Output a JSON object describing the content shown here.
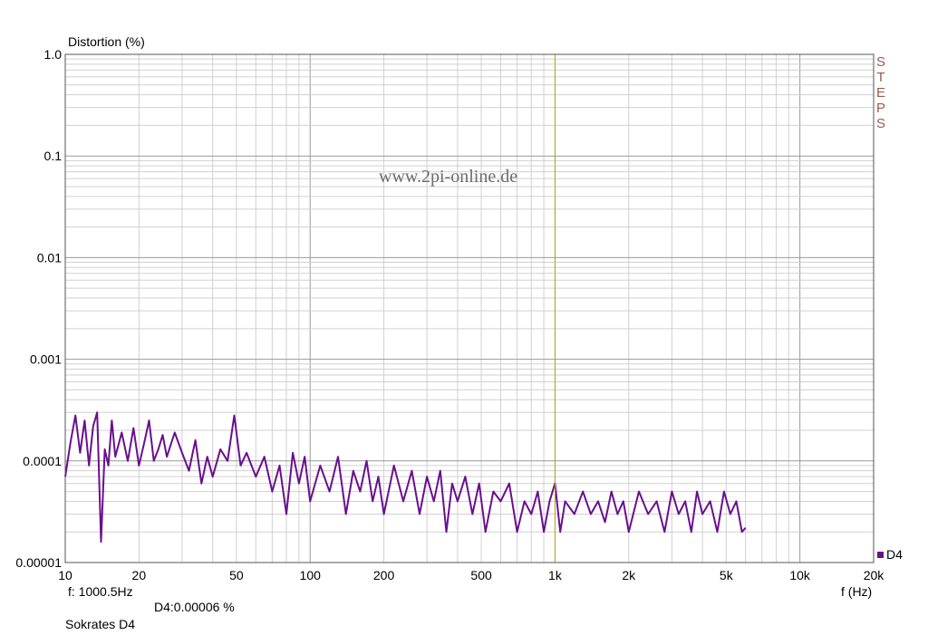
{
  "chart_data": {
    "type": "line",
    "ylabel": "Distortion (%)",
    "xlabel": "f (Hz)",
    "x_scale": "log",
    "y_scale": "log",
    "xlim": [
      10,
      20000
    ],
    "ylim": [
      1e-05,
      1.0
    ],
    "grid": true,
    "legend_position": "bottom-right",
    "x_ticks": [
      {
        "v": 10,
        "label": "10"
      },
      {
        "v": 20,
        "label": "20"
      },
      {
        "v": 50,
        "label": "50"
      },
      {
        "v": 100,
        "label": "100"
      },
      {
        "v": 200,
        "label": "200"
      },
      {
        "v": 500,
        "label": "500"
      },
      {
        "v": 1000,
        "label": "1k"
      },
      {
        "v": 2000,
        "label": "2k"
      },
      {
        "v": 5000,
        "label": "5k"
      },
      {
        "v": 10000,
        "label": "10k"
      },
      {
        "v": 20000,
        "label": "20k"
      }
    ],
    "y_ticks": [
      {
        "v": 1.0,
        "label": "1.0"
      },
      {
        "v": 0.1,
        "label": "0.1"
      },
      {
        "v": 0.01,
        "label": "0.01"
      },
      {
        "v": 0.001,
        "label": "0.001"
      },
      {
        "v": 0.0001,
        "label": "0.0001"
      },
      {
        "v": 1e-05,
        "label": "0.00001"
      }
    ],
    "cursor": {
      "frequency": 1000.5,
      "color": "#b8a800"
    },
    "series": [
      {
        "name": "D4",
        "color": "#6a0f8e",
        "x": [
          10,
          10.5,
          11,
          11.5,
          12,
          12.5,
          13,
          13.5,
          14,
          14.5,
          15,
          15.5,
          16,
          17,
          18,
          19,
          20,
          21,
          22,
          23,
          24,
          25,
          26,
          28,
          30,
          32,
          34,
          36,
          38,
          40,
          43,
          46,
          49,
          52,
          55,
          60,
          65,
          70,
          75,
          80,
          85,
          90,
          95,
          100,
          110,
          120,
          130,
          140,
          150,
          160,
          170,
          180,
          190,
          200,
          220,
          240,
          260,
          280,
          300,
          320,
          340,
          360,
          380,
          400,
          430,
          460,
          490,
          520,
          560,
          600,
          650,
          700,
          750,
          800,
          850,
          900,
          950,
          1000,
          1050,
          1100,
          1200,
          1300,
          1400,
          1500,
          1600,
          1700,
          1800,
          1900,
          2000,
          2200,
          2400,
          2600,
          2800,
          3000,
          3200,
          3400,
          3600,
          3800,
          4000,
          4300,
          4600,
          4900,
          5200,
          5500,
          5800,
          6000
        ],
        "y": [
          7e-05,
          0.00015,
          0.00028,
          0.00012,
          0.00025,
          9e-05,
          0.00022,
          0.0003,
          1.6e-05,
          0.00013,
          9e-05,
          0.00025,
          0.00011,
          0.00019,
          0.0001,
          0.00021,
          9e-05,
          0.00015,
          0.00025,
          0.0001,
          0.00013,
          0.00018,
          0.00011,
          0.00019,
          0.00012,
          8e-05,
          0.00016,
          6e-05,
          0.00011,
          7e-05,
          0.00013,
          0.0001,
          0.00028,
          9e-05,
          0.00012,
          7e-05,
          0.00011,
          5e-05,
          9e-05,
          3e-05,
          0.00012,
          6e-05,
          0.00011,
          4e-05,
          9e-05,
          5e-05,
          0.00011,
          3e-05,
          8e-05,
          5e-05,
          0.0001,
          4e-05,
          7e-05,
          3e-05,
          9e-05,
          4e-05,
          8e-05,
          3e-05,
          7e-05,
          4e-05,
          8e-05,
          2e-05,
          6e-05,
          4e-05,
          7e-05,
          3e-05,
          6e-05,
          2e-05,
          5e-05,
          4e-05,
          6e-05,
          2e-05,
          4e-05,
          3e-05,
          5e-05,
          2e-05,
          4e-05,
          6e-05,
          2e-05,
          4e-05,
          3e-05,
          5e-05,
          3e-05,
          4e-05,
          2.5e-05,
          5e-05,
          3e-05,
          4e-05,
          2e-05,
          5e-05,
          3e-05,
          4e-05,
          2e-05,
          5e-05,
          3e-05,
          4e-05,
          2e-05,
          5e-05,
          3e-05,
          4e-05,
          2e-05,
          5e-05,
          3e-05,
          4e-05,
          2e-05,
          2.2e-05
        ]
      }
    ]
  },
  "cursor_readout": {
    "frequency": "f: 1000.5Hz",
    "value": "D4:0.00006   %"
  },
  "watermark": "www.2pi-online.de",
  "side_label": [
    "S",
    "T",
    "E",
    "P",
    "S"
  ],
  "footer": "Sokrates D4",
  "colors": {
    "grid_major": "#999999",
    "grid_minor": "#d0d0d0",
    "axis": "#555555"
  }
}
